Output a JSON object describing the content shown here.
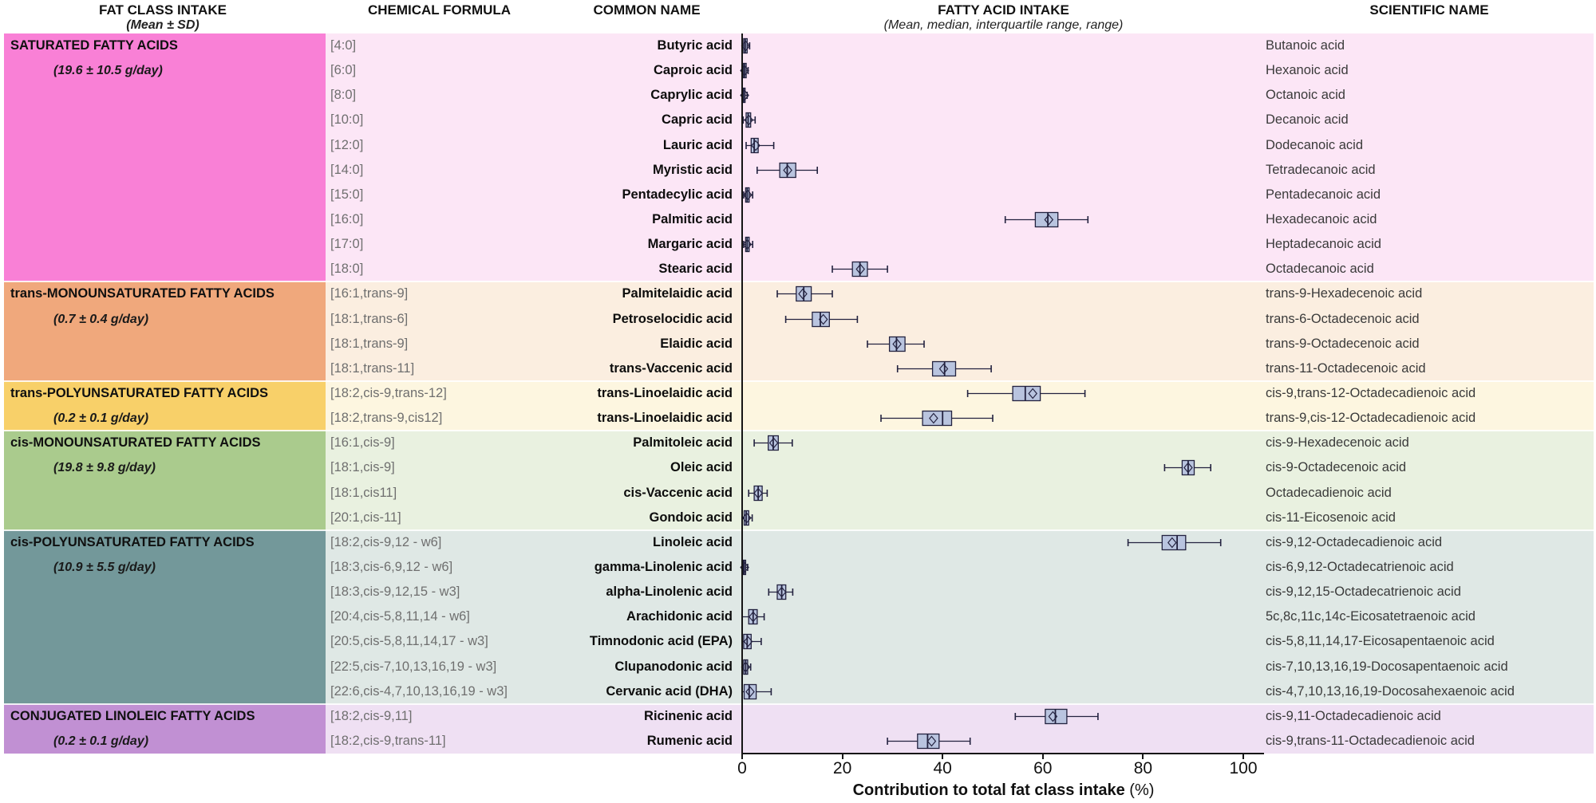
{
  "header": {
    "col1_title": "FAT CLASS INTAKE",
    "col1_sub": "(Mean ± SD)",
    "col2_title": "CHEMICAL FORMULA",
    "col3_title": "COMMON NAME",
    "col4_title": "FATTY ACID INTAKE",
    "col4_sub": "(Mean, median, interquartile range, range)",
    "col5_title": "SCIENTIFIC NAME"
  },
  "axis": {
    "title": "Contribution to total fat class intake",
    "unit": " (%)",
    "ticks": [
      0,
      20,
      40,
      60,
      80,
      100
    ],
    "min": 0,
    "max": 100
  },
  "chart_data": {
    "type": "boxplot",
    "orientation": "horizontal",
    "xlabel": "Contribution to total fat class intake (%)",
    "xlim": [
      0,
      100
    ],
    "xticks": [
      0,
      20,
      40,
      60,
      80,
      100
    ],
    "grid": false,
    "box_fill": "#b9c4df",
    "box_stroke": "#23223f",
    "groups": [
      {
        "name": "SATURATED FATTY ACIDS",
        "intake": "(19.6 ± 10.5 g/day)",
        "color_dark": "#f980d6",
        "color_light": "#fce6f6",
        "rows": [
          {
            "formula": "[4:0]",
            "common": "Butyric acid",
            "scientific": "Butanoic acid",
            "min": 0,
            "q1": 0.3,
            "median": 0.6,
            "q3": 1.0,
            "max": 1.5,
            "mean": 0.7
          },
          {
            "formula": "[6:0]",
            "common": "Caproic acid",
            "scientific": "Hexanoic acid",
            "min": 0,
            "q1": 0.2,
            "median": 0.5,
            "q3": 0.8,
            "max": 1.2,
            "mean": 0.5
          },
          {
            "formula": "[8:0]",
            "common": "Caprylic acid",
            "scientific": "Octanoic acid",
            "min": 0,
            "q1": 0.1,
            "median": 0.3,
            "q3": 0.6,
            "max": 1.0,
            "mean": 0.5
          },
          {
            "formula": "[10:0]",
            "common": "Capric acid",
            "scientific": "Decanoic acid",
            "min": 0.2,
            "q1": 0.8,
            "median": 1.2,
            "q3": 1.7,
            "max": 2.6,
            "mean": 1.3
          },
          {
            "formula": "[12:0]",
            "common": "Lauric acid",
            "scientific": "Dodecanoic acid",
            "min": 0.8,
            "q1": 1.8,
            "median": 2.4,
            "q3": 3.2,
            "max": 6.3,
            "mean": 2.7
          },
          {
            "formula": "[14:0]",
            "common": "Myristic acid",
            "scientific": "Tetradecanoic acid",
            "min": 3.0,
            "q1": 7.5,
            "median": 9.0,
            "q3": 10.7,
            "max": 15.0,
            "mean": 9.1
          },
          {
            "formula": "[15:0]",
            "common": "Pentadecylic acid",
            "scientific": "Pentadecanoic acid",
            "min": 0.3,
            "q1": 0.7,
            "median": 1.0,
            "q3": 1.4,
            "max": 2.1,
            "mean": 1.1
          },
          {
            "formula": "[16:0]",
            "common": "Palmitic acid",
            "scientific": "Hexadecanoic acid",
            "min": 52.5,
            "q1": 58.5,
            "median": 61.0,
            "q3": 63.0,
            "max": 69.0,
            "mean": 61.2
          },
          {
            "formula": "[17:0]",
            "common": "Margaric acid",
            "scientific": "Heptadecanoic acid",
            "min": 0.3,
            "q1": 0.7,
            "median": 1.0,
            "q3": 1.4,
            "max": 2.1,
            "mean": 1.0
          },
          {
            "formula": "[18:0]",
            "common": "Stearic acid",
            "scientific": "Octadecanoic acid",
            "min": 18.0,
            "q1": 22.0,
            "median": 23.5,
            "q3": 25.0,
            "max": 29.0,
            "mean": 23.6
          }
        ]
      },
      {
        "name": "trans-MONOUNSATURATED FATTY ACIDS",
        "intake": "(0.7 ± 0.4 g/day)",
        "color_dark": "#f0a87c",
        "color_light": "#fbeee0",
        "rows": [
          {
            "formula": "[16:1,trans-9]",
            "common": "Palmitelaidic acid",
            "scientific": "trans-9-Hexadecenoic acid",
            "min": 7.0,
            "q1": 10.8,
            "median": 12.3,
            "q3": 13.8,
            "max": 18.0,
            "mean": 12.1
          },
          {
            "formula": "[18:1,trans-6]",
            "common": "Petroselocidic acid",
            "scientific": "trans-6-Octadecenoic acid",
            "min": 8.7,
            "q1": 14.0,
            "median": 15.6,
            "q3": 17.4,
            "max": 23.0,
            "mean": 16.2
          },
          {
            "formula": "[18:1,trans-9]",
            "common": "Elaidic acid",
            "scientific": "trans-9-Octadecenoic acid",
            "min": 25.0,
            "q1": 29.4,
            "median": 30.8,
            "q3": 32.5,
            "max": 36.3,
            "mean": 30.9
          },
          {
            "formula": "[18:1,trans-11]",
            "common": "trans-Vaccenic acid",
            "scientific": "trans-11-Octadecenoic acid",
            "min": 31.0,
            "q1": 38.0,
            "median": 40.4,
            "q3": 42.6,
            "max": 49.7,
            "mean": 40.2
          }
        ]
      },
      {
        "name": "trans-POLYUNSATURATED FATTY ACIDS",
        "intake": "(0.2 ± 0.1 g/day)",
        "color_dark": "#f8d069",
        "color_light": "#fdf6e0",
        "rows": [
          {
            "formula": "[18:2,cis-9,trans-12]",
            "common": "trans-Linoelaidic acid",
            "scientific": "cis-9,trans-12-Octadecadienoic acid",
            "min": 45.0,
            "q1": 54.0,
            "median": 56.5,
            "q3": 59.5,
            "max": 68.4,
            "mean": 58.0
          },
          {
            "formula": "[18:2,trans-9,cis12]",
            "common": "trans-Linoelaidic acid",
            "scientific": "trans-9,cis-12-Octadecadienoic acid",
            "min": 27.7,
            "q1": 36.0,
            "median": 40.0,
            "q3": 41.8,
            "max": 50.0,
            "mean": 38.2
          }
        ]
      },
      {
        "name": "cis-MONOUNSATURATED FATTY ACIDS",
        "intake": "(19.8 ± 9.8 g/day)",
        "color_dark": "#aacb8d",
        "color_light": "#e9f1e0",
        "rows": [
          {
            "formula": "[16:1,cis-9]",
            "common": "Palmitoleic acid",
            "scientific": "cis-9-Hexadecenoic acid",
            "min": 2.4,
            "q1": 5.2,
            "median": 6.2,
            "q3": 7.2,
            "max": 10.0,
            "mean": 6.3
          },
          {
            "formula": "[18:1,cis-9]",
            "common": "Oleic acid",
            "scientific": "cis-9-Octadecenoic acid",
            "min": 84.3,
            "q1": 87.8,
            "median": 89.0,
            "q3": 90.2,
            "max": 93.5,
            "mean": 89.0
          },
          {
            "formula": "[18:1,cis11]",
            "common": "cis-Vaccenic acid",
            "scientific": "Octadecadienoic acid",
            "min": 1.3,
            "q1": 2.4,
            "median": 3.2,
            "q3": 4.0,
            "max": 5.0,
            "mean": 3.2
          },
          {
            "formula": "[20:1,cis-11]",
            "common": "Gondoic acid",
            "scientific": "cis-11-Eicosenoic acid",
            "min": 0,
            "q1": 0.4,
            "median": 0.8,
            "q3": 1.3,
            "max": 2.0,
            "mean": 0.9
          }
        ]
      },
      {
        "name": "cis-POLYUNSATURATED FATTY ACIDS",
        "intake": "(10.9 ± 5.5 g/day)",
        "color_dark": "#73989a",
        "color_light": "#dfe8e5",
        "rows": [
          {
            "formula": "[18:2,cis-9,12 - w6]",
            "common": "Linoleic acid",
            "scientific": "cis-9,12-Octadecadienoic acid",
            "min": 77.0,
            "q1": 83.8,
            "median": 86.8,
            "q3": 88.5,
            "max": 95.5,
            "mean": 85.8
          },
          {
            "formula": "[18:3,cis-6,9,12 - w6]",
            "common": "gamma-Linolenic acid",
            "scientific": "cis-6,9,12-Octadecatrienoic acid",
            "min": 0,
            "q1": 0.2,
            "median": 0.4,
            "q3": 0.7,
            "max": 1.1,
            "mean": 0.5
          },
          {
            "formula": "[18:3,cis-9,12,15 - w3]",
            "common": "alpha-Linolenic acid",
            "scientific": "cis-9,12,15-Octadecatrienoic acid",
            "min": 5.3,
            "q1": 7.0,
            "median": 7.9,
            "q3": 8.7,
            "max": 10.1,
            "mean": 7.9
          },
          {
            "formula": "[20:4,cis-5,8,11,14 - w6]",
            "common": "Arachidonic acid",
            "scientific": "5c,8c,11c,14c-Eicosatetraenoic acid",
            "min": 0,
            "q1": 1.3,
            "median": 2.2,
            "q3": 3.0,
            "max": 4.4,
            "mean": 2.2
          },
          {
            "formula": "[20:5,cis-5,8,11,14,17 - w3]",
            "common": "Timnodonic acid (EPA)",
            "scientific": "cis-5,8,11,14,17-Eicosapentaenoic acid",
            "min": 0,
            "q1": 0.3,
            "median": 1.0,
            "q3": 1.8,
            "max": 3.8,
            "mean": 1.2
          },
          {
            "formula": "[22:5,cis-7,10,13,16,19 - w3]",
            "common": "Clupanodonic acid",
            "scientific": "cis-7,10,13,16,19-Docosapentaenoic acid",
            "min": 0,
            "q1": 0.3,
            "median": 0.7,
            "q3": 1.1,
            "max": 1.7,
            "mean": 0.7
          },
          {
            "formula": "[22:6,cis-4,7,10,13,16,19 - w3]",
            "common": "Cervanic acid (DHA)",
            "scientific": "cis-4,7,10,13,16,19-Docosahexaenoic acid",
            "min": 0,
            "q1": 0.4,
            "median": 1.4,
            "q3": 2.8,
            "max": 5.8,
            "mean": 1.6
          }
        ]
      },
      {
        "name": "CONJUGATED LINOLEIC FATTY ACIDS",
        "intake": "(0.2 ± 0.1 g/day)",
        "color_dark": "#c190d3",
        "color_light": "#efe0f3",
        "rows": [
          {
            "formula": "[18:2,cis-9,11]",
            "common": "Ricinenic acid",
            "scientific": "cis-9,11-Octadecadienoic acid",
            "min": 54.5,
            "q1": 60.5,
            "median": 62.5,
            "q3": 64.8,
            "max": 71.0,
            "mean": 62.0
          },
          {
            "formula": "[18:2,cis-9,trans-11]",
            "common": "Rumenic acid",
            "scientific": "cis-9,trans-11-Octadecadienoic acid",
            "min": 29.0,
            "q1": 35.0,
            "median": 37.0,
            "q3": 39.3,
            "max": 45.5,
            "mean": 37.8
          }
        ]
      }
    ]
  }
}
